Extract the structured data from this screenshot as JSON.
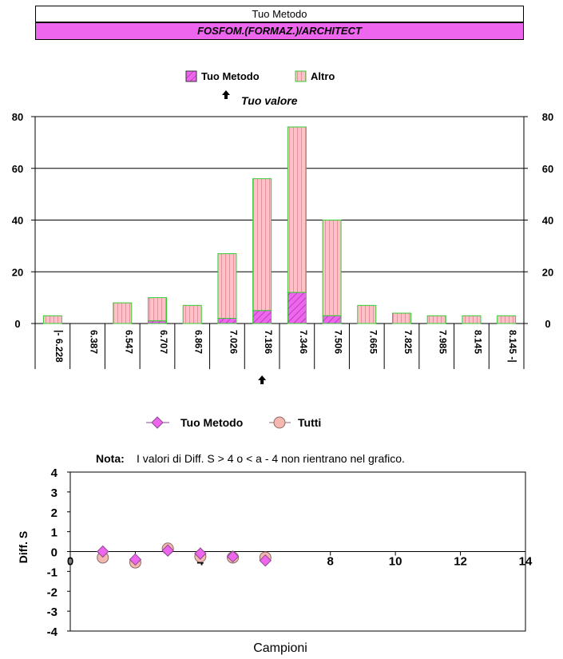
{
  "header": {
    "title": "Tuo Metodo",
    "subtitle": "FOSFOM.(FORMAZ.)/ARCHITECT"
  },
  "colors": {
    "header_band": "#ee66ee",
    "altro_fill": "#ffc0c8",
    "altro_stroke": "#33cc33",
    "metodo_fill": "#ee66ee",
    "tutti_fill": "#f5b8b0",
    "metodo_marker": "#ee66ee"
  },
  "chart_data": [
    {
      "type": "bar",
      "stacked": true,
      "legend": [
        "Tuo Metodo",
        "Altro"
      ],
      "legend_position": "top-center",
      "marker_legend": "Tuo valore",
      "marker_category": "7.186",
      "categories": [
        "|- 6.228",
        "6.387",
        "6.547",
        "6.707",
        "6.867",
        "7.026",
        "7.186",
        "7.346",
        "7.506",
        "7.665",
        "7.825",
        "7.985",
        "8.145",
        "8.145 -|"
      ],
      "series": [
        {
          "name": "Tuo Metodo",
          "values": [
            0,
            0,
            0,
            1,
            0,
            2,
            5,
            12,
            3,
            0,
            0,
            0,
            0,
            0
          ]
        },
        {
          "name": "Altro",
          "values": [
            3,
            0,
            8,
            9,
            7,
            25,
            51,
            64,
            37,
            7,
            4,
            3,
            3,
            3
          ]
        }
      ],
      "ylim": [
        0,
        80
      ],
      "yticks": [
        0,
        20,
        40,
        60,
        80
      ],
      "grid": true
    },
    {
      "type": "scatter",
      "legend": [
        "Tuo Metodo",
        "Tutti"
      ],
      "legend_position": "top-center",
      "note_label": "Nota:",
      "note_text": "I valori di Diff. S > 4 o < a - 4 non rientrano nel grafico.",
      "xlabel": "Campioni",
      "ylabel": "Diff. S",
      "xlim": [
        0,
        14
      ],
      "ylim": [
        -4,
        4
      ],
      "xticks": [
        0,
        2,
        4,
        6,
        8,
        10,
        12,
        14
      ],
      "yticks": [
        4,
        3,
        2,
        1,
        0,
        -1,
        -2,
        -3,
        -4
      ],
      "series": [
        {
          "name": "Tuo Metodo",
          "points": [
            [
              1,
              0.0
            ],
            [
              2,
              -0.4
            ],
            [
              3,
              0.05
            ],
            [
              4,
              -0.1
            ],
            [
              5,
              -0.25
            ],
            [
              6,
              -0.45
            ]
          ]
        },
        {
          "name": "Tutti",
          "points": [
            [
              1,
              -0.3
            ],
            [
              2,
              -0.55
            ],
            [
              3,
              0.15
            ],
            [
              4,
              -0.25
            ],
            [
              5,
              -0.3
            ],
            [
              6,
              -0.3
            ]
          ]
        }
      ]
    }
  ]
}
